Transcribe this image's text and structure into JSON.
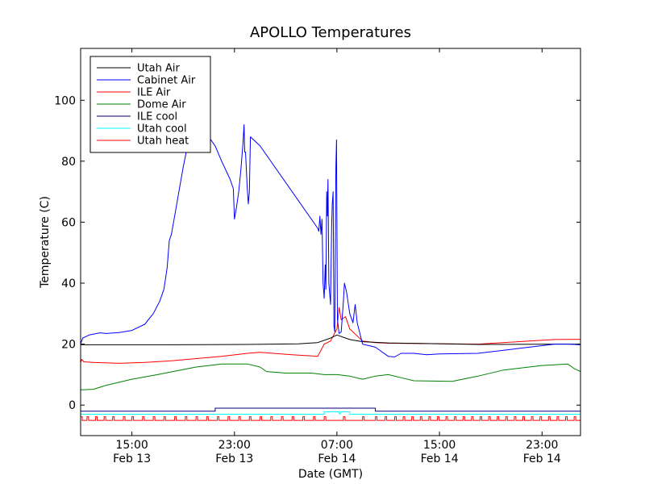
{
  "chart_data": {
    "type": "line",
    "title": "APOLLO Temperatures",
    "xlabel": "Date (GMT)",
    "ylabel": "Temperature (C)",
    "xlim": [
      "2013-02-13 11:00",
      "2013-02-15 02:00"
    ],
    "ylim": [
      -10,
      117
    ],
    "grid": false,
    "legend_position": "top-left",
    "x_ticks": [
      {
        "t": "2013-02-13 15:00",
        "time": "15:00",
        "date": "Feb 13"
      },
      {
        "t": "2013-02-13 23:00",
        "time": "23:00",
        "date": "Feb 13"
      },
      {
        "t": "2013-02-14 07:00",
        "time": "07:00",
        "date": "Feb 14"
      },
      {
        "t": "2013-02-14 15:00",
        "time": "15:00",
        "date": "Feb 14"
      },
      {
        "t": "2013-02-14 23:00",
        "time": "23:00",
        "date": "Feb 14"
      }
    ],
    "y_ticks": [
      0,
      20,
      40,
      60,
      80,
      100
    ],
    "series": [
      {
        "name": "Utah Air",
        "color": "#000000",
        "points": [
          [
            "2013-02-13 11:00",
            19.8
          ],
          [
            "2013-02-13 18:00",
            19.8
          ],
          [
            "2013-02-14 00:00",
            19.9
          ],
          [
            "2013-02-14 04:00",
            20.1
          ],
          [
            "2013-02-14 05:30",
            20.5
          ],
          [
            "2013-02-14 06:30",
            22.0
          ],
          [
            "2013-02-14 07:00",
            23.0
          ],
          [
            "2013-02-14 08:00",
            21.5
          ],
          [
            "2013-02-14 09:00",
            20.8
          ],
          [
            "2013-02-14 11:00",
            20.4
          ],
          [
            "2013-02-14 18:00",
            19.9
          ],
          [
            "2013-02-15 00:00",
            20.0
          ],
          [
            "2013-02-15 02:00",
            20.0
          ]
        ]
      },
      {
        "name": "Cabinet Air",
        "color": "#0000ff",
        "points": [
          [
            "2013-02-13 11:00",
            20.0
          ],
          [
            "2013-02-13 11:10",
            22.0
          ],
          [
            "2013-02-13 11:40",
            23.0
          ],
          [
            "2013-02-13 12:30",
            23.7
          ],
          [
            "2013-02-13 13:00",
            23.5
          ],
          [
            "2013-02-13 14:00",
            23.8
          ],
          [
            "2013-02-13 15:00",
            24.5
          ],
          [
            "2013-02-13 16:00",
            26.5
          ],
          [
            "2013-02-13 16:40",
            30.0
          ],
          [
            "2013-02-13 17:10",
            34.0
          ],
          [
            "2013-02-13 17:30",
            38.0
          ],
          [
            "2013-02-13 17:45",
            45.0
          ],
          [
            "2013-02-13 17:55",
            54.0
          ],
          [
            "2013-02-13 18:05",
            56.0
          ],
          [
            "2013-02-13 18:20",
            62.0
          ],
          [
            "2013-02-13 18:40",
            70.0
          ],
          [
            "2013-02-13 19:00",
            78.0
          ],
          [
            "2013-02-13 19:20",
            85.0
          ],
          [
            "2013-02-13 19:40",
            90.0
          ],
          [
            "2013-02-13 20:10",
            92.0
          ],
          [
            "2013-02-13 20:40",
            90.0
          ],
          [
            "2013-02-13 21:10",
            87.0
          ],
          [
            "2013-02-13 21:30",
            85.0
          ],
          [
            "2013-02-13 22:00",
            80.0
          ],
          [
            "2013-02-13 22:40",
            74.0
          ],
          [
            "2013-02-13 22:55",
            71.0
          ],
          [
            "2013-02-13 23:00",
            61.0
          ],
          [
            "2013-02-13 23:10",
            65.0
          ],
          [
            "2013-02-13 23:20",
            70.0
          ],
          [
            "2013-02-13 23:30",
            77.0
          ],
          [
            "2013-02-13 23:40",
            86.0
          ],
          [
            "2013-02-13 23:45",
            92.0
          ],
          [
            "2013-02-13 23:48",
            83.0
          ],
          [
            "2013-02-13 23:52",
            83.0
          ],
          [
            "2013-02-14 00:00",
            71.0
          ],
          [
            "2013-02-14 00:05",
            66.0
          ],
          [
            "2013-02-14 00:10",
            70.0
          ],
          [
            "2013-02-14 00:15",
            88.0
          ],
          [
            "2013-02-14 01:00",
            85.0
          ],
          [
            "2013-02-14 05:30",
            58.0
          ],
          [
            "2013-02-14 05:35",
            57.0
          ],
          [
            "2013-02-14 05:40",
            62.0
          ],
          [
            "2013-02-14 05:45",
            56.0
          ],
          [
            "2013-02-14 05:50",
            61.0
          ],
          [
            "2013-02-14 05:55",
            40.0
          ],
          [
            "2013-02-14 06:00",
            35.0
          ],
          [
            "2013-02-14 06:05",
            46.0
          ],
          [
            "2013-02-14 06:08",
            38.0
          ],
          [
            "2013-02-14 06:12",
            70.0
          ],
          [
            "2013-02-14 06:15",
            62.0
          ],
          [
            "2013-02-14 06:18",
            74.0
          ],
          [
            "2013-02-14 06:22",
            40.0
          ],
          [
            "2013-02-14 06:30",
            33.0
          ],
          [
            "2013-02-14 06:35",
            58.0
          ],
          [
            "2013-02-14 06:38",
            66.0
          ],
          [
            "2013-02-14 06:42",
            70.0
          ],
          [
            "2013-02-14 06:46",
            26.0
          ],
          [
            "2013-02-14 06:50",
            24.0
          ],
          [
            "2013-02-14 06:55",
            78.0
          ],
          [
            "2013-02-14 06:58",
            87.0
          ],
          [
            "2013-02-14 07:02",
            28.0
          ],
          [
            "2013-02-14 07:10",
            23.5
          ],
          [
            "2013-02-14 07:20",
            24.0
          ],
          [
            "2013-02-14 07:30",
            34.0
          ],
          [
            "2013-02-14 07:35",
            40.0
          ],
          [
            "2013-02-14 07:45",
            37.0
          ],
          [
            "2013-02-14 08:00",
            30.0
          ],
          [
            "2013-02-14 08:15",
            27.0
          ],
          [
            "2013-02-14 08:25",
            33.0
          ],
          [
            "2013-02-14 08:35",
            27.0
          ],
          [
            "2013-02-14 09:00",
            20.0
          ],
          [
            "2013-02-14 10:00",
            19.0
          ],
          [
            "2013-02-14 10:30",
            17.5
          ],
          [
            "2013-02-14 11:00",
            16.0
          ],
          [
            "2013-02-14 11:30",
            15.8
          ],
          [
            "2013-02-14 12:00",
            17.0
          ],
          [
            "2013-02-14 13:00",
            17.0
          ],
          [
            "2013-02-14 14:00",
            16.5
          ],
          [
            "2013-02-14 15:00",
            16.8
          ],
          [
            "2013-02-14 18:00",
            17.0
          ],
          [
            "2013-02-14 21:00",
            18.5
          ],
          [
            "2013-02-15 00:00",
            20.0
          ],
          [
            "2013-02-15 01:00",
            20.0
          ],
          [
            "2013-02-15 02:00",
            19.8
          ]
        ]
      },
      {
        "name": "ILE Air",
        "color": "#ff0000",
        "points": [
          [
            "2013-02-13 11:00",
            14.0
          ],
          [
            "2013-02-13 11:05",
            15.0
          ],
          [
            "2013-02-13 11:15",
            14.2
          ],
          [
            "2013-02-13 12:00",
            14.0
          ],
          [
            "2013-02-13 14:00",
            13.7
          ],
          [
            "2013-02-13 16:00",
            14.0
          ],
          [
            "2013-02-13 18:00",
            14.5
          ],
          [
            "2013-02-13 22:00",
            16.0
          ],
          [
            "2013-02-14 00:00",
            17.0
          ],
          [
            "2013-02-14 01:00",
            17.3
          ],
          [
            "2013-02-14 02:00",
            17.0
          ],
          [
            "2013-02-14 03:30",
            16.5
          ],
          [
            "2013-02-14 05:30",
            16.0
          ],
          [
            "2013-02-14 06:00",
            20.0
          ],
          [
            "2013-02-14 06:30",
            21.0
          ],
          [
            "2013-02-14 07:00",
            25.0
          ],
          [
            "2013-02-14 07:10",
            32.0
          ],
          [
            "2013-02-14 07:20",
            28.0
          ],
          [
            "2013-02-14 07:40",
            29.0
          ],
          [
            "2013-02-14 08:00",
            25.0
          ],
          [
            "2013-02-14 08:30",
            23.0
          ],
          [
            "2013-02-14 09:00",
            21.0
          ],
          [
            "2013-02-14 10:00",
            20.5
          ],
          [
            "2013-02-14 11:00",
            20.3
          ],
          [
            "2013-02-14 18:00",
            20.0
          ],
          [
            "2013-02-14 22:00",
            21.0
          ],
          [
            "2013-02-15 00:00",
            21.5
          ],
          [
            "2013-02-15 02:00",
            21.6
          ]
        ]
      },
      {
        "name": "Dome Air",
        "color": "#008000",
        "points": [
          [
            "2013-02-13 11:00",
            5.0
          ],
          [
            "2013-02-13 12:00",
            5.2
          ],
          [
            "2013-02-13 13:00",
            6.5
          ],
          [
            "2013-02-13 15:00",
            8.5
          ],
          [
            "2013-02-13 17:00",
            10.0
          ],
          [
            "2013-02-13 20:00",
            12.5
          ],
          [
            "2013-02-13 22:00",
            13.5
          ],
          [
            "2013-02-14 00:00",
            13.5
          ],
          [
            "2013-02-14 01:00",
            12.5
          ],
          [
            "2013-02-14 01:30",
            11.0
          ],
          [
            "2013-02-14 03:00",
            10.5
          ],
          [
            "2013-02-14 05:00",
            10.5
          ],
          [
            "2013-02-14 06:00",
            10.0
          ],
          [
            "2013-02-14 07:00",
            10.0
          ],
          [
            "2013-02-14 08:00",
            9.5
          ],
          [
            "2013-02-14 09:00",
            8.5
          ],
          [
            "2013-02-14 10:00",
            9.5
          ],
          [
            "2013-02-14 11:00",
            10.0
          ],
          [
            "2013-02-14 12:00",
            9.0
          ],
          [
            "2013-02-14 13:00",
            8.0
          ],
          [
            "2013-02-14 16:00",
            7.8
          ],
          [
            "2013-02-14 18:00",
            9.5
          ],
          [
            "2013-02-14 20:00",
            11.5
          ],
          [
            "2013-02-14 23:00",
            13.0
          ],
          [
            "2013-02-15 01:00",
            13.5
          ],
          [
            "2013-02-15 01:30",
            12.0
          ],
          [
            "2013-02-15 02:00",
            11.0
          ]
        ]
      },
      {
        "name": "ILE cool",
        "color": "#000080",
        "points": [
          [
            "2013-02-13 11:00",
            -2.0
          ],
          [
            "2013-02-13 21:30",
            -2.0
          ],
          [
            "2013-02-13 21:30",
            -1.0
          ],
          [
            "2013-02-14 10:00",
            -1.0
          ],
          [
            "2013-02-14 10:00",
            -2.0
          ],
          [
            "2013-02-15 02:00",
            -2.0
          ]
        ]
      },
      {
        "name": "Utah cool",
        "color": "#00ffff",
        "points": [
          [
            "2013-02-13 11:00",
            -3.0
          ],
          [
            "2013-02-14 06:00",
            -3.0
          ],
          [
            "2013-02-14 06:00",
            -2.2
          ],
          [
            "2013-02-14 07:10",
            -2.2
          ],
          [
            "2013-02-14 07:12",
            -3.0
          ],
          [
            "2013-02-14 07:20",
            -2.2
          ],
          [
            "2013-02-14 08:00",
            -2.2
          ],
          [
            "2013-02-14 08:00",
            -3.0
          ],
          [
            "2013-02-15 02:00",
            -3.0
          ]
        ]
      },
      {
        "name": "Utah heat",
        "color": "#ff0000",
        "baseline": -5.0,
        "pulse_top": -3.8,
        "pulse_times": [
          "2013-02-13 11:00",
          "2013-02-13 11:30",
          "2013-02-13 12:10",
          "2013-02-13 12:50",
          "2013-02-13 13:30",
          "2013-02-13 14:20",
          "2013-02-13 15:00",
          "2013-02-13 15:50",
          "2013-02-13 16:40",
          "2013-02-13 17:30",
          "2013-02-13 18:20",
          "2013-02-13 19:10",
          "2013-02-13 20:00",
          "2013-02-13 20:50",
          "2013-02-13 21:40",
          "2013-02-13 22:30",
          "2013-02-13 23:20",
          "2013-02-14 00:10",
          "2013-02-14 01:00",
          "2013-02-14 01:50",
          "2013-02-14 02:40",
          "2013-02-14 03:30",
          "2013-02-14 04:20",
          "2013-02-14 05:10",
          "2013-02-14 06:00",
          "2013-02-14 07:30",
          "2013-02-14 09:00",
          "2013-02-14 10:00",
          "2013-02-14 10:45",
          "2013-02-14 11:30",
          "2013-02-14 12:10",
          "2013-02-14 12:50",
          "2013-02-14 13:30",
          "2013-02-14 14:10",
          "2013-02-14 14:50",
          "2013-02-14 15:30",
          "2013-02-14 16:10",
          "2013-02-14 16:50",
          "2013-02-14 17:30",
          "2013-02-14 18:10",
          "2013-02-14 18:50",
          "2013-02-14 19:30",
          "2013-02-14 20:10",
          "2013-02-14 20:50",
          "2013-02-14 21:30",
          "2013-02-14 22:10",
          "2013-02-14 22:50",
          "2013-02-14 23:30",
          "2013-02-15 00:10",
          "2013-02-15 00:50",
          "2013-02-15 01:30"
        ]
      }
    ]
  }
}
